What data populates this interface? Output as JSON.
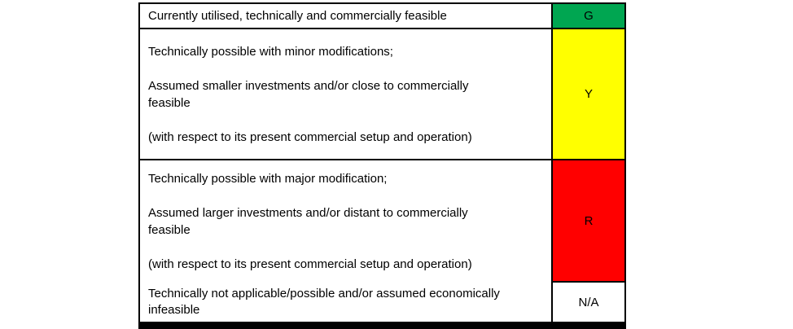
{
  "legend": {
    "rows": [
      {
        "code": "G",
        "color": "#00a651",
        "paragraphs": [
          [
            "Currently utilised, technically and commercially feasible"
          ]
        ]
      },
      {
        "code": "Y",
        "color": "#ffff00",
        "paragraphs": [
          [
            "Technically possible with minor modifications;"
          ],
          [
            "Assumed smaller investments and/or close to commercially",
            "feasible"
          ],
          [
            "(with respect to its present commercial setup and operation)"
          ]
        ]
      },
      {
        "code": "R",
        "color": "#ff0000",
        "paragraphs": [
          [
            "Technically possible with major modification;"
          ],
          [
            "Assumed larger investments and/or distant to commercially",
            "feasible"
          ],
          [
            "(with respect to its present commercial setup and operation)"
          ]
        ]
      },
      {
        "code": "N/A",
        "color": "#ffffff",
        "paragraphs": [
          [
            "Technically not applicable/possible and/or assumed economically",
            "infeasible"
          ]
        ]
      }
    ]
  }
}
